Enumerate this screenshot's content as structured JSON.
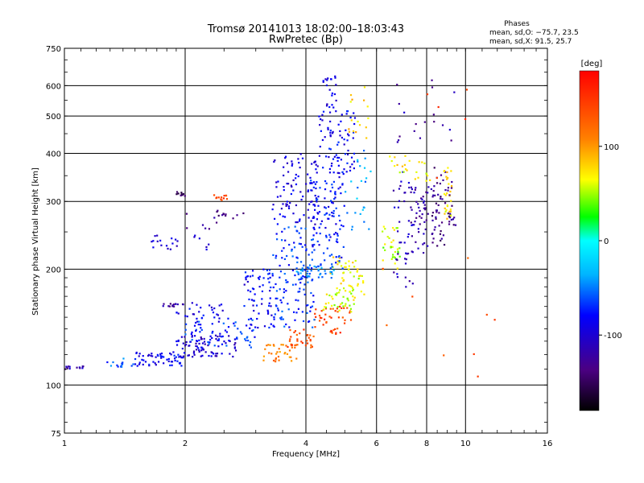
{
  "chart_data": {
    "type": "scatter",
    "title": "Tromsø 20141013 18:02:00–18:03:43",
    "subtitle": "RwPretec (Bp)",
    "xlabel": "Frequency [MHz]",
    "ylabel": "Stationary phase Virtual Height [km]",
    "x_scale": "log",
    "y_scale": "log",
    "xlim": [
      1,
      16
    ],
    "ylim": [
      75,
      750
    ],
    "x_ticks": [
      1,
      2,
      4,
      6,
      8,
      10,
      16
    ],
    "x_tick_labels": [
      "1",
      "2",
      "4",
      "6",
      "8",
      "10",
      "16"
    ],
    "y_ticks": [
      75,
      100,
      200,
      300,
      400,
      500,
      600,
      750
    ],
    "y_tick_labels": [
      "75",
      "100",
      "200",
      "300",
      "400",
      "500",
      "600",
      "750"
    ],
    "grid": true,
    "colorbar": {
      "label": "[deg]",
      "range": [
        -180,
        180
      ],
      "ticks": [
        100,
        0,
        -100
      ],
      "tick_labels": [
        "100",
        "0",
        "-100"
      ]
    },
    "legend": {
      "title": "Phases",
      "line_o": "mean, sd,O: −75.7, 23.5",
      "line_x": "mean, sd,X:  91.5, 25.7"
    },
    "clusters": [
      {
        "x": [
          1.0,
          1.12
        ],
        "y": [
          110,
          112
        ],
        "phase": -115,
        "n": 14
      },
      {
        "x": [
          1.25,
          1.5
        ],
        "y": [
          111,
          118
        ],
        "phase": -60,
        "n": 14
      },
      {
        "x": [
          1.5,
          2.0
        ],
        "y": [
          112,
          122
        ],
        "phase": -85,
        "n": 60
      },
      {
        "x": [
          1.9,
          2.7
        ],
        "y": [
          118,
          135
        ],
        "phase": -100,
        "n": 90
      },
      {
        "x": [
          2.0,
          3.0
        ],
        "y": [
          125,
          150
        ],
        "phase": -70,
        "n": 60
      },
      {
        "x": [
          1.75,
          2.0
        ],
        "y": [
          160,
          163
        ],
        "phase": -125,
        "n": 14
      },
      {
        "x": [
          1.9,
          2.5
        ],
        "y": [
          145,
          165
        ],
        "phase": -90,
        "n": 30
      },
      {
        "x": [
          1.6,
          2.3
        ],
        "y": [
          225,
          245
        ],
        "phase": -100,
        "n": 22
      },
      {
        "x": [
          1.9,
          2.0
        ],
        "y": [
          310,
          318
        ],
        "phase": -150,
        "n": 10
      },
      {
        "x": [
          2.35,
          2.6
        ],
        "y": [
          302,
          312
        ],
        "phase": 145,
        "n": 12
      },
      {
        "x": [
          2.4,
          2.6
        ],
        "y": [
          275,
          285
        ],
        "phase": -140,
        "n": 6
      },
      {
        "x": [
          2.0,
          2.8
        ],
        "y": [
          250,
          280
        ],
        "phase": -135,
        "n": 12
      },
      {
        "x": [
          2.8,
          3.3
        ],
        "y": [
          140,
          200
        ],
        "phase": -85,
        "n": 60
      },
      {
        "x": [
          3.1,
          3.8
        ],
        "y": [
          115,
          128
        ],
        "phase": 110,
        "n": 34
      },
      {
        "x": [
          3.6,
          4.2
        ],
        "y": [
          125,
          140
        ],
        "phase": 135,
        "n": 34
      },
      {
        "x": [
          4.2,
          5.2
        ],
        "y": [
          135,
          160
        ],
        "phase": 140,
        "n": 44
      },
      {
        "x": [
          4.4,
          5.3
        ],
        "y": [
          155,
          180
        ],
        "phase": 60,
        "n": 40
      },
      {
        "x": [
          4.6,
          5.6
        ],
        "y": [
          180,
          215
        ],
        "phase": 70,
        "n": 30
      },
      {
        "x": [
          3.3,
          4.2
        ],
        "y": [
          140,
          260
        ],
        "phase": -70,
        "n": 130
      },
      {
        "x": [
          3.3,
          4.3
        ],
        "y": [
          260,
          400
        ],
        "phase": -95,
        "n": 90
      },
      {
        "x": [
          3.7,
          4.7
        ],
        "y": [
          190,
          205
        ],
        "phase": -45,
        "n": 40
      },
      {
        "x": [
          4.1,
          5.0
        ],
        "y": [
          200,
          360
        ],
        "phase": -80,
        "n": 110
      },
      {
        "x": [
          4.3,
          5.3
        ],
        "y": [
          350,
          520
        ],
        "phase": -85,
        "n": 80
      },
      {
        "x": [
          4.4,
          4.8
        ],
        "y": [
          520,
          640
        ],
        "phase": -95,
        "n": 22
      },
      {
        "x": [
          5.1,
          5.8
        ],
        "y": [
          420,
          600
        ],
        "phase": 80,
        "n": 16
      },
      {
        "x": [
          5.0,
          5.8
        ],
        "y": [
          250,
          420
        ],
        "phase": -40,
        "n": 24
      },
      {
        "x": [
          5.1,
          5.6
        ],
        "y": [
          170,
          195
        ],
        "phase": 60,
        "n": 16
      },
      {
        "x": [
          6.2,
          6.9
        ],
        "y": [
          200,
          260
        ],
        "phase": 55,
        "n": 34
      },
      {
        "x": [
          6.6,
          7.4
        ],
        "y": [
          180,
          360
        ],
        "phase": -110,
        "n": 44
      },
      {
        "x": [
          6.3,
          7.5
        ],
        "y": [
          340,
          400
        ],
        "phase": 70,
        "n": 14
      },
      {
        "x": [
          7.3,
          8.1
        ],
        "y": [
          220,
          330
        ],
        "phase": -120,
        "n": 44
      },
      {
        "x": [
          7.5,
          8.2
        ],
        "y": [
          330,
          380
        ],
        "phase": 60,
        "n": 10
      },
      {
        "x": [
          8.2,
          8.9
        ],
        "y": [
          230,
          370
        ],
        "phase": -130,
        "n": 44
      },
      {
        "x": [
          8.8,
          9.3
        ],
        "y": [
          270,
          390
        ],
        "phase": 75,
        "n": 30
      },
      {
        "x": [
          8.8,
          9.5
        ],
        "y": [
          260,
          340
        ],
        "phase": -135,
        "n": 18
      },
      {
        "x": [
          6.5,
          9.5
        ],
        "y": [
          420,
          620
        ],
        "phase": -120,
        "n": 18
      },
      {
        "x": [
          6.0,
          12.0
        ],
        "y": [
          100,
          650
        ],
        "phase": 140,
        "n": 14
      }
    ]
  }
}
